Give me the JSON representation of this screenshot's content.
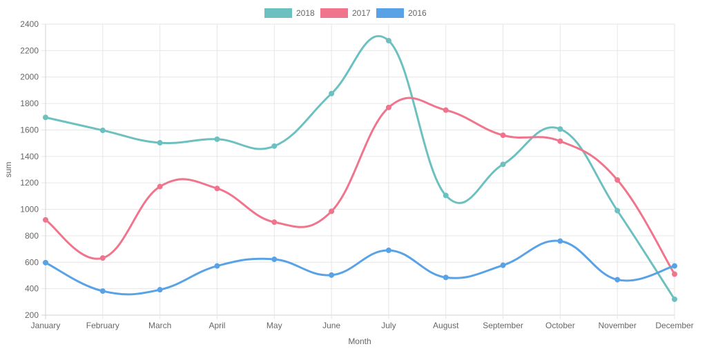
{
  "chart_data": {
    "type": "line",
    "title": "",
    "xlabel": "Month",
    "ylabel": "sum",
    "categories": [
      "January",
      "February",
      "March",
      "April",
      "May",
      "June",
      "July",
      "August",
      "September",
      "October",
      "November",
      "December"
    ],
    "yticks": [
      "200",
      "400",
      "600",
      "800",
      "1000",
      "1200",
      "1400",
      "1600",
      "1800",
      "2000",
      "2200",
      "2400"
    ],
    "ylim": [
      200,
      2400
    ],
    "grid": true,
    "legend_position": "top-center",
    "series": [
      {
        "name": "2018",
        "color": "#6cc0c0",
        "values": [
          1695,
          1597,
          1503,
          1530,
          1478,
          1875,
          2275,
          1105,
          1340,
          1607,
          990,
          320
        ]
      },
      {
        "name": "2017",
        "color": "#f0758c",
        "values": [
          920,
          632,
          1172,
          1158,
          903,
          985,
          1770,
          1750,
          1560,
          1515,
          1222,
          510
        ]
      },
      {
        "name": "2016",
        "color": "#58a2e5",
        "values": [
          597,
          382,
          392,
          572,
          622,
          503,
          690,
          485,
          577,
          760,
          468,
          572
        ]
      }
    ]
  }
}
